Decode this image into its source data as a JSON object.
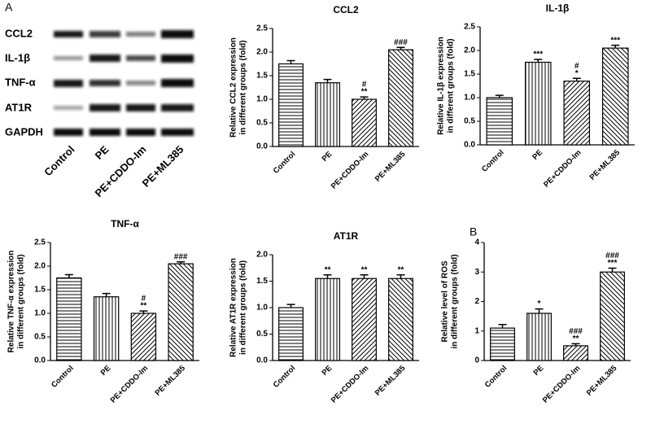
{
  "blot": {
    "panel_label": "A",
    "rows": [
      "CCL2",
      "IL-1β",
      "TNF-α",
      "AT1R",
      "GAPDH"
    ],
    "lanes": [
      "Control",
      "PE",
      "PE+CDDO-Im",
      "PE+ML385"
    ]
  },
  "chart_data": [
    {
      "type": "bar",
      "title": "CCL2",
      "ylabel": [
        "Relative CCL2 expression",
        "in different groups (fold)"
      ],
      "categories": [
        "Control",
        "PE",
        "PE+CDDO-Im",
        "PE+ML385"
      ],
      "values": [
        1.75,
        1.35,
        1.0,
        2.05
      ],
      "errors": [
        0.07,
        0.07,
        0.05,
        0.05
      ],
      "annotations": [
        [],
        [],
        [
          "#",
          "**"
        ],
        [
          "###"
        ]
      ],
      "patterns": [
        "horizontal",
        "vertical",
        "diagonal",
        "diagonal-reverse"
      ],
      "color": "#000000",
      "ylim": [
        0,
        2.5
      ],
      "yticks": [
        {
          "value": 0,
          "label": "0.0"
        },
        0.5,
        {
          "value": 1,
          "label": "1.0"
        },
        1.5,
        {
          "value": 2,
          "label": "2.0"
        },
        2.5
      ]
    },
    {
      "type": "bar",
      "title": "IL-1β",
      "ylabel": [
        "Relative IL-1β expression",
        "in different groups (fold)"
      ],
      "categories": [
        "Control",
        "PE",
        "PE+CDDO-Im",
        "PE+ML385"
      ],
      "values": [
        1.0,
        1.75,
        1.35,
        2.05
      ],
      "errors": [
        0.05,
        0.06,
        0.06,
        0.06
      ],
      "annotations": [
        [],
        [
          "***"
        ],
        [
          "#",
          "*"
        ],
        [
          "***"
        ]
      ],
      "patterns": [
        "horizontal",
        "vertical",
        "diagonal",
        "diagonal-reverse"
      ],
      "color": "#000000",
      "ylim": [
        0,
        2.5
      ],
      "yticks": [
        {
          "value": 0,
          "label": "0.0"
        },
        0.5,
        {
          "value": 1,
          "label": "1.0"
        },
        1.5,
        {
          "value": 2,
          "label": "2.0"
        },
        2.5
      ]
    },
    {
      "type": "bar",
      "title": "TNF-α",
      "ylabel": [
        "Relative TNF-α expression",
        "in different groups (fold)"
      ],
      "categories": [
        "Control",
        "PE",
        "PE+CDDO-Im",
        "PE+ML385"
      ],
      "values": [
        1.75,
        1.35,
        1.0,
        2.05
      ],
      "errors": [
        0.07,
        0.07,
        0.05,
        0.04
      ],
      "annotations": [
        [],
        [],
        [
          "#",
          "**"
        ],
        [
          "###"
        ]
      ],
      "patterns": [
        "horizontal",
        "vertical",
        "diagonal",
        "diagonal-reverse"
      ],
      "color": "#000000",
      "ylim": [
        0,
        2.5
      ],
      "yticks": [
        {
          "value": 0,
          "label": "0.0"
        },
        0.5,
        {
          "value": 1,
          "label": "1.0"
        },
        1.5,
        {
          "value": 2,
          "label": "2.0"
        },
        2.5
      ]
    },
    {
      "type": "bar",
      "title": "AT1R",
      "ylabel": [
        "Relative AT1R expression",
        "in different groups (fold)"
      ],
      "categories": [
        "Control",
        "PE",
        "PE+CDDO-Im",
        "PE+ML385"
      ],
      "values": [
        1.0,
        1.55,
        1.55,
        1.55
      ],
      "errors": [
        0.06,
        0.07,
        0.07,
        0.07
      ],
      "annotations": [
        [],
        [
          "**"
        ],
        [
          "**"
        ],
        [
          "**"
        ]
      ],
      "patterns": [
        "horizontal",
        "vertical",
        "diagonal",
        "diagonal-reverse"
      ],
      "color": "#000000",
      "ylim": [
        0,
        2
      ],
      "yticks": [
        {
          "value": 0,
          "label": "0.0"
        },
        0.5,
        {
          "value": 1,
          "label": "1.0"
        },
        1.5,
        {
          "value": 2,
          "label": "2.0"
        }
      ]
    },
    {
      "type": "bar",
      "panel_label": "B",
      "ylabel": [
        "Relative level of ROS",
        "in different groups (fold)"
      ],
      "categories": [
        "Control",
        "PE",
        "PE+CDDO-Im",
        "PE+ML385"
      ],
      "values": [
        1.1,
        1.6,
        0.5,
        3.0
      ],
      "errors": [
        0.12,
        0.15,
        0.07,
        0.13
      ],
      "annotations": [
        [],
        [
          "*"
        ],
        [
          "###",
          "**"
        ],
        [
          "###",
          "***"
        ]
      ],
      "patterns": [
        "horizontal",
        "vertical",
        "diagonal",
        "diagonal-reverse"
      ],
      "color": "#000000",
      "ylim": [
        0,
        4
      ],
      "yticks": [
        0,
        1,
        2,
        3,
        4
      ]
    }
  ]
}
